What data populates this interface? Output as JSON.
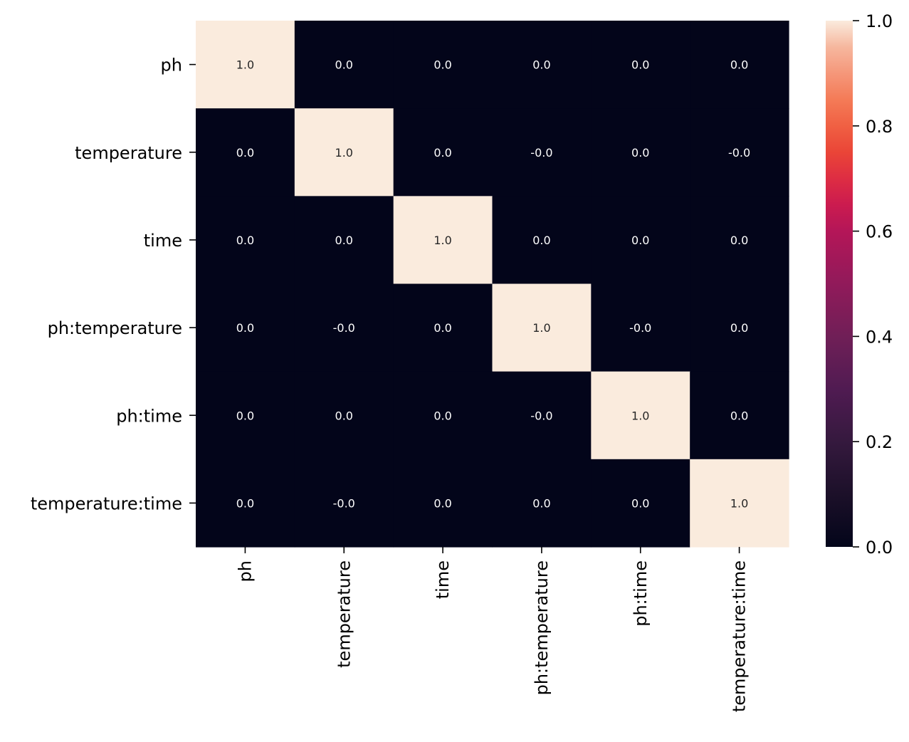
{
  "chart_data": {
    "type": "heatmap",
    "title": "",
    "xlabel": "",
    "ylabel": "",
    "x_categories": [
      "ph",
      "temperature",
      "time",
      "ph:temperature",
      "ph:time",
      "temperature:time"
    ],
    "y_categories": [
      "ph",
      "temperature",
      "time",
      "ph:temperature",
      "ph:time",
      "temperature:time"
    ],
    "values": [
      [
        1.0,
        0.0,
        0.0,
        0.0,
        0.0,
        0.0
      ],
      [
        0.0,
        1.0,
        0.0,
        0.0,
        0.0,
        0.0
      ],
      [
        0.0,
        0.0,
        1.0,
        0.0,
        0.0,
        0.0
      ],
      [
        0.0,
        0.0,
        0.0,
        1.0,
        0.0,
        0.0
      ],
      [
        0.0,
        0.0,
        0.0,
        0.0,
        1.0,
        0.0
      ],
      [
        0.0,
        0.0,
        0.0,
        0.0,
        0.0,
        1.0
      ]
    ],
    "annotations": [
      [
        "1.0",
        "0.0",
        "0.0",
        "0.0",
        "0.0",
        "0.0"
      ],
      [
        "0.0",
        "1.0",
        "0.0",
        "-0.0",
        "0.0",
        "-0.0"
      ],
      [
        "0.0",
        "0.0",
        "1.0",
        "0.0",
        "0.0",
        "0.0"
      ],
      [
        "0.0",
        "-0.0",
        "0.0",
        "1.0",
        "-0.0",
        "0.0"
      ],
      [
        "0.0",
        "0.0",
        "0.0",
        "-0.0",
        "1.0",
        "0.0"
      ],
      [
        "0.0",
        "-0.0",
        "0.0",
        "0.0",
        "0.0",
        "1.0"
      ]
    ],
    "colorbar": {
      "range": [
        0.0,
        1.0
      ],
      "ticks": [
        "0.0",
        "0.2",
        "0.4",
        "0.6",
        "0.8",
        "1.0"
      ],
      "colormap": "rocket",
      "low_color": "#03051a",
      "high_color": "#faebdd"
    },
    "grid": false,
    "legend": "none"
  }
}
